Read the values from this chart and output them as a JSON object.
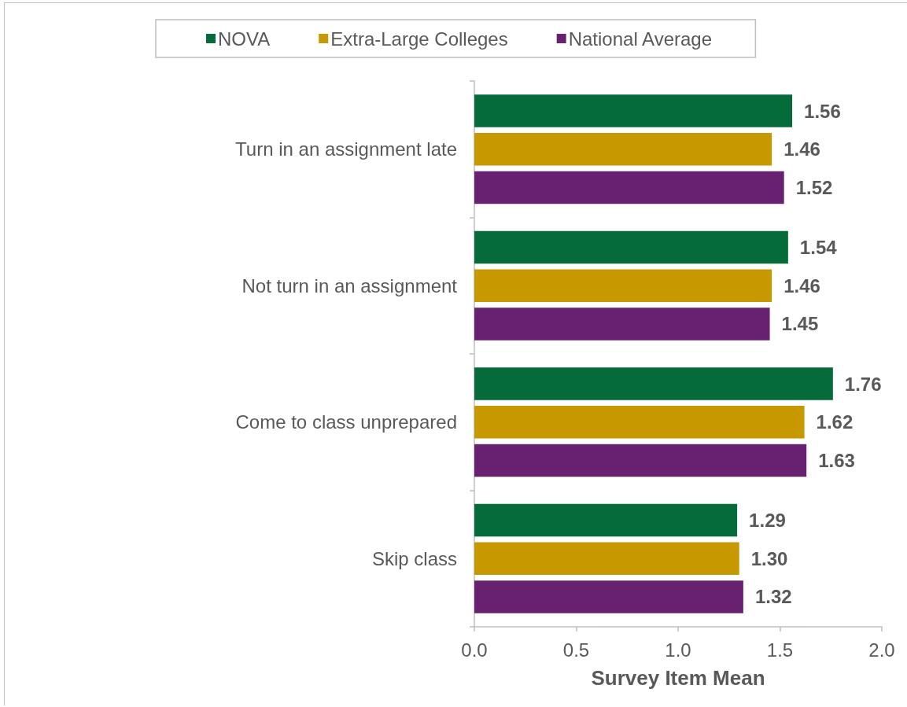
{
  "chart_data": {
    "type": "bar",
    "orientation": "horizontal",
    "xlabel": "Survey Item Mean",
    "categories": [
      "Turn in an assignment late",
      "Not turn in an assignment",
      "Come to class unprepared",
      "Skip class"
    ],
    "series": [
      {
        "name": "NOVA",
        "color": "#066b3a",
        "values": [
          1.56,
          1.54,
          1.76,
          1.29
        ],
        "value_labels": [
          "1.56",
          "1.54",
          "1.76",
          "1.29"
        ]
      },
      {
        "name": "Extra-Large Colleges",
        "color": "#c89800",
        "values": [
          1.46,
          1.46,
          1.62,
          1.3
        ],
        "value_labels": [
          "1.46",
          "1.46",
          "1.62",
          "1.30"
        ]
      },
      {
        "name": "National Average",
        "color": "#682070",
        "values": [
          1.52,
          1.45,
          1.63,
          1.32
        ],
        "value_labels": [
          "1.52",
          "1.45",
          "1.63",
          "1.32"
        ]
      }
    ],
    "xlim": [
      0,
      2
    ],
    "xticks": [
      {
        "value": 0,
        "label": "0.0"
      },
      0.5,
      {
        "value": 1,
        "label": "1.0"
      },
      1.5,
      {
        "value": 2,
        "label": "2.0"
      }
    ],
    "grid": false,
    "legend": "top"
  }
}
